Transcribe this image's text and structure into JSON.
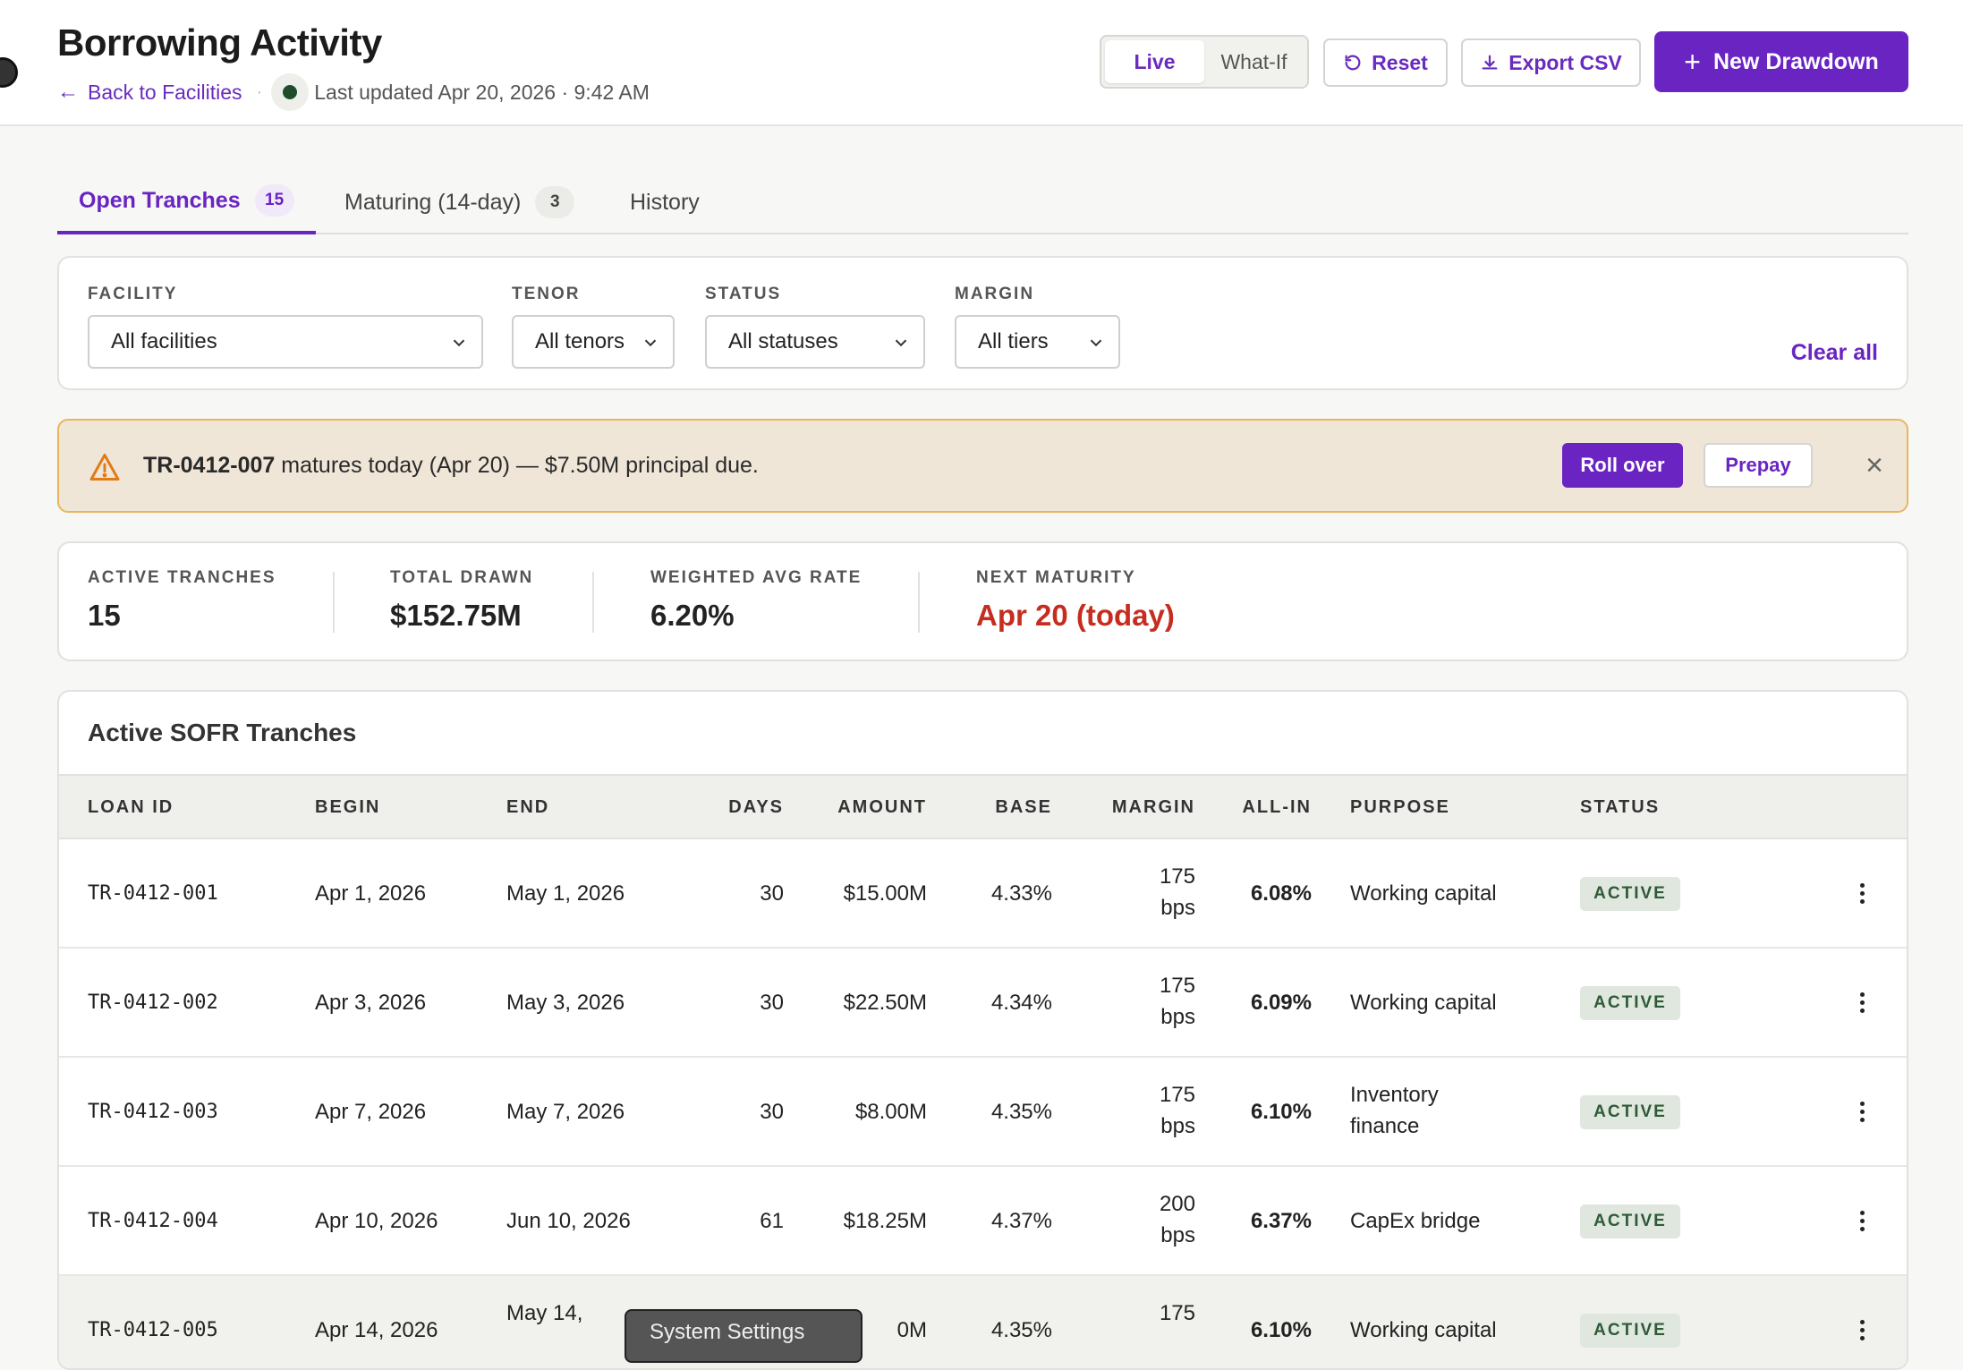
{
  "header": {
    "title": "Borrowing Activity",
    "back_label": "Back to Facilities",
    "updated": "Last updated Apr 20, 2026 · 9:42 AM",
    "mode_options": [
      "Live",
      "What-If"
    ],
    "reset_label": "Reset",
    "export_label": "Export CSV",
    "new_label": "New Drawdown"
  },
  "tabs": [
    {
      "label": "Open Tranches",
      "count": "15"
    },
    {
      "label": "Maturing (14-day)",
      "count": "3"
    },
    {
      "label": "History"
    }
  ],
  "filters": {
    "facility": {
      "label": "FACILITY",
      "value": "All facilities"
    },
    "tenor": {
      "label": "TENOR",
      "value": "All tenors"
    },
    "status": {
      "label": "STATUS",
      "value": "All statuses"
    },
    "margin": {
      "label": "MARGIN",
      "value": "All tiers"
    },
    "clear_label": "Clear all"
  },
  "alert": {
    "loan_id": "TR-0412-007",
    "message": " matures today (Apr 20) — $7.50M principal due.",
    "roll_label": "Roll over",
    "prepay_label": "Prepay",
    "close_glyph": "×"
  },
  "stats": [
    {
      "label": "ACTIVE TRANCHES",
      "value": "15"
    },
    {
      "label": "TOTAL DRAWN",
      "value": "$152.75M"
    },
    {
      "label": "WEIGHTED AVG RATE",
      "value": "6.20%"
    },
    {
      "label": "NEXT MATURITY",
      "value": "Apr 20 (today)"
    }
  ],
  "table": {
    "title": "Active SOFR Tranches",
    "columns": [
      "LOAN ID",
      "BEGIN",
      "END",
      "DAYS",
      "AMOUNT",
      "BASE",
      "MARGIN",
      "ALL-IN",
      "PURPOSE",
      "STATUS"
    ],
    "rows": [
      {
        "id": "TR-0412-001",
        "begin": "Apr 1, 2026",
        "end": "May 1, 2026",
        "days": "30",
        "amount": "$15.00M",
        "base": "4.33%",
        "margin": "175",
        "margin_unit": "bps",
        "allin": "6.08%",
        "purpose": "Working capital",
        "purpose2": "",
        "status": "ACTIVE"
      },
      {
        "id": "TR-0412-002",
        "begin": "Apr 3, 2026",
        "end": "May 3, 2026",
        "days": "30",
        "amount": "$22.50M",
        "base": "4.34%",
        "margin": "175",
        "margin_unit": "bps",
        "allin": "6.09%",
        "purpose": "Working capital",
        "purpose2": "",
        "status": "ACTIVE"
      },
      {
        "id": "TR-0412-003",
        "begin": "Apr 7, 2026",
        "end": "May 7, 2026",
        "days": "30",
        "amount": "$8.00M",
        "base": "4.35%",
        "margin": "175",
        "margin_unit": "bps",
        "allin": "6.10%",
        "purpose": "Inventory",
        "purpose2": "finance",
        "status": "ACTIVE"
      },
      {
        "id": "TR-0412-004",
        "begin": "Apr 10, 2026",
        "end": "Jun 10, 2026",
        "days": "61",
        "amount": "$18.25M",
        "base": "4.37%",
        "margin": "200",
        "margin_unit": "bps",
        "allin": "6.37%",
        "purpose": "CapEx bridge",
        "purpose2": "",
        "status": "ACTIVE"
      },
      {
        "id": "TR-0412-005",
        "begin": "Apr 14, 2026",
        "end": "May 14,",
        "days": "",
        "amount": "0M",
        "base": "4.35%",
        "margin": "175",
        "margin_unit": "",
        "allin": "6.10%",
        "purpose": "Working capital",
        "purpose2": "",
        "status": "ACTIVE"
      }
    ]
  },
  "tooltip": "System Settings",
  "colors": {
    "accent": "#6a24c2",
    "danger": "#c62d1f",
    "alert_bg": "#efe6d8",
    "alert_border": "#eab65c"
  }
}
